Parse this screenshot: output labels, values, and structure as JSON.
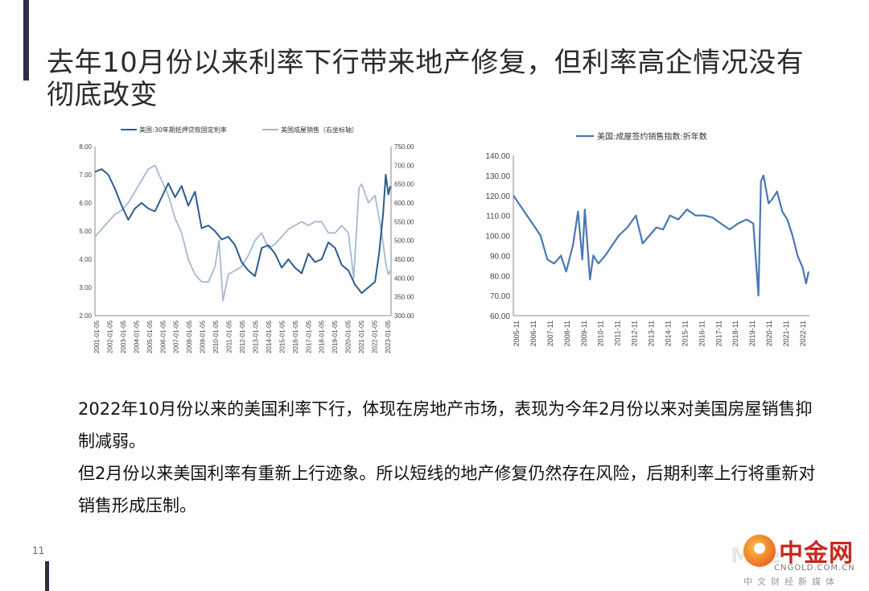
{
  "title": "去年10月份以来利率下行带来地产修复，但利率高企情况没有彻底改变",
  "body_paragraphs": [
    "2022年10月份以来的美国利率下行，体现在房地产市场，表现为今年2月份以来对美国房屋销售抑制减弱。",
    "但2月份以来美国利率有重新上行迹象。所以短线的地产修复仍然存在风险，后期利率上行将重新对销售形成压制。"
  ],
  "page_number": "11",
  "logo": {
    "brand": "中金网",
    "domain": "CNGOLD.COM.CN",
    "tagline": "中文财经新媒体",
    "faded_text": "MGe"
  },
  "colors": {
    "dark": "#2d5b8f",
    "light": "#a6b9d4",
    "accent_bar": "#2b3046"
  },
  "chart_data": [
    {
      "type": "line",
      "legend": [
        "美国:30年期抵押贷款固定利率",
        "美国成屋销售（右坐标轴）"
      ],
      "left_axis": {
        "ylim": [
          2,
          8
        ],
        "ticks": [
          "8.00",
          "7.00",
          "6.00",
          "5.00",
          "4.00",
          "3.00",
          "2.00"
        ]
      },
      "right_axis": {
        "ylim": [
          300,
          750
        ],
        "ticks": [
          "750.00",
          "700.00",
          "650.00",
          "600.00",
          "550.00",
          "500.00",
          "450.00",
          "400.00",
          "350.00",
          "300.00"
        ]
      },
      "x_ticks": [
        "2001-01-05",
        "2002-01-05",
        "2003-01-05",
        "2004-01-05",
        "2005-01-05",
        "2006-01-05",
        "2007-01-05",
        "2008-01-05",
        "2009-01-05",
        "2010-01-05",
        "2011-01-05",
        "2012-01-05",
        "2013-01-05",
        "2014-01-05",
        "2015-01-05",
        "2016-01-05",
        "2017-01-05",
        "2018-01-05",
        "2019-01-05",
        "2020-01-05",
        "2021-01-05",
        "2022-01-05",
        "2023-01-05"
      ],
      "series": [
        {
          "name": "美国:30年期抵押贷款固定利率",
          "axis": "left",
          "color": "#2d5b8f",
          "x": [
            2001.0,
            2001.5,
            2002.0,
            2002.5,
            2003.0,
            2003.5,
            2004.0,
            2004.5,
            2005.0,
            2005.5,
            2006.0,
            2006.5,
            2007.0,
            2007.5,
            2008.0,
            2008.5,
            2009.0,
            2009.5,
            2010.0,
            2010.5,
            2011.0,
            2011.5,
            2012.0,
            2012.5,
            2013.0,
            2013.5,
            2014.0,
            2014.5,
            2015.0,
            2015.5,
            2016.0,
            2016.5,
            2017.0,
            2017.5,
            2018.0,
            2018.5,
            2019.0,
            2019.5,
            2020.0,
            2020.5,
            2021.0,
            2021.5,
            2022.0,
            2022.3,
            2022.6,
            2022.8,
            2023.0,
            2023.15
          ],
          "values": [
            7.1,
            7.2,
            7.0,
            6.5,
            5.9,
            5.4,
            5.8,
            6.0,
            5.8,
            5.7,
            6.2,
            6.7,
            6.2,
            6.6,
            5.9,
            6.4,
            5.1,
            5.2,
            5.0,
            4.7,
            4.8,
            4.5,
            3.9,
            3.6,
            3.4,
            4.4,
            4.5,
            4.2,
            3.7,
            4.0,
            3.7,
            3.5,
            4.2,
            3.9,
            4.0,
            4.6,
            4.4,
            3.8,
            3.6,
            3.1,
            2.8,
            3.0,
            3.2,
            4.2,
            5.6,
            7.0,
            6.3,
            6.6
          ]
        },
        {
          "name": "美国成屋销售（右坐标轴）",
          "axis": "right",
          "color": "#a6b9d4",
          "x": [
            2001.0,
            2001.5,
            2002.0,
            2002.5,
            2003.0,
            2003.5,
            2004.0,
            2004.5,
            2005.0,
            2005.5,
            2006.0,
            2006.5,
            2007.0,
            2007.5,
            2008.0,
            2008.5,
            2009.0,
            2009.5,
            2010.0,
            2010.3,
            2010.6,
            2011.0,
            2011.5,
            2012.0,
            2012.5,
            2013.0,
            2013.5,
            2014.0,
            2014.5,
            2015.0,
            2015.5,
            2016.0,
            2016.5,
            2017.0,
            2017.5,
            2018.0,
            2018.5,
            2019.0,
            2019.5,
            2020.0,
            2020.4,
            2020.8,
            2021.0,
            2021.5,
            2022.0,
            2022.5,
            2022.8,
            2023.0,
            2023.15
          ],
          "values": [
            510,
            530,
            550,
            570,
            580,
            600,
            630,
            660,
            690,
            700,
            660,
            620,
            560,
            520,
            450,
            410,
            390,
            390,
            430,
            500,
            340,
            410,
            420,
            430,
            460,
            500,
            520,
            480,
            490,
            510,
            530,
            540,
            550,
            540,
            550,
            550,
            520,
            520,
            540,
            520,
            400,
            640,
            650,
            600,
            620,
            520,
            440,
            410,
            420
          ]
        }
      ]
    },
    {
      "type": "line",
      "legend": [
        "美国:成屋签约销售指数:折年数"
      ],
      "ylim": [
        60,
        140
      ],
      "y_ticks": [
        "140.00",
        "130.00",
        "120.00",
        "110.00",
        "100.00",
        "90.00",
        "80.00",
        "70.00",
        "60.00"
      ],
      "x_ticks": [
        "2005-11",
        "2006-11",
        "2007-11",
        "2008-11",
        "2009-11",
        "2010-11",
        "2011-11",
        "2012-11",
        "2013-11",
        "2014-11",
        "2015-11",
        "2016-11",
        "2017-11",
        "2018-11",
        "2019-11",
        "2020-11",
        "2021-11",
        "2022-11"
      ],
      "series": [
        {
          "name": "美国:成屋签约销售指数:折年数",
          "color": "#4a77b4",
          "x": [
            2005.8,
            2006.2,
            2006.6,
            2007.0,
            2007.4,
            2007.8,
            2008.2,
            2008.6,
            2008.9,
            2009.3,
            2009.6,
            2009.85,
            2010.0,
            2010.3,
            2010.5,
            2010.8,
            2011.2,
            2011.6,
            2012.0,
            2012.5,
            2013.0,
            2013.4,
            2013.8,
            2014.2,
            2014.6,
            2015.0,
            2015.5,
            2016.0,
            2016.5,
            2017.0,
            2017.5,
            2018.0,
            2018.5,
            2019.0,
            2019.5,
            2019.9,
            2020.2,
            2020.35,
            2020.5,
            2020.8,
            2021.0,
            2021.3,
            2021.6,
            2021.9,
            2022.2,
            2022.5,
            2022.8,
            2023.0,
            2023.15
          ],
          "values": [
            120,
            115,
            110,
            105,
            100,
            88,
            86,
            90,
            82,
            95,
            112,
            88,
            113,
            78,
            90,
            86,
            90,
            95,
            100,
            104,
            110,
            96,
            100,
            104,
            103,
            110,
            108,
            113,
            110,
            110,
            109,
            106,
            103,
            106,
            108,
            106,
            70,
            127,
            130,
            116,
            118,
            122,
            112,
            108,
            100,
            90,
            84,
            76,
            82
          ]
        }
      ]
    }
  ]
}
